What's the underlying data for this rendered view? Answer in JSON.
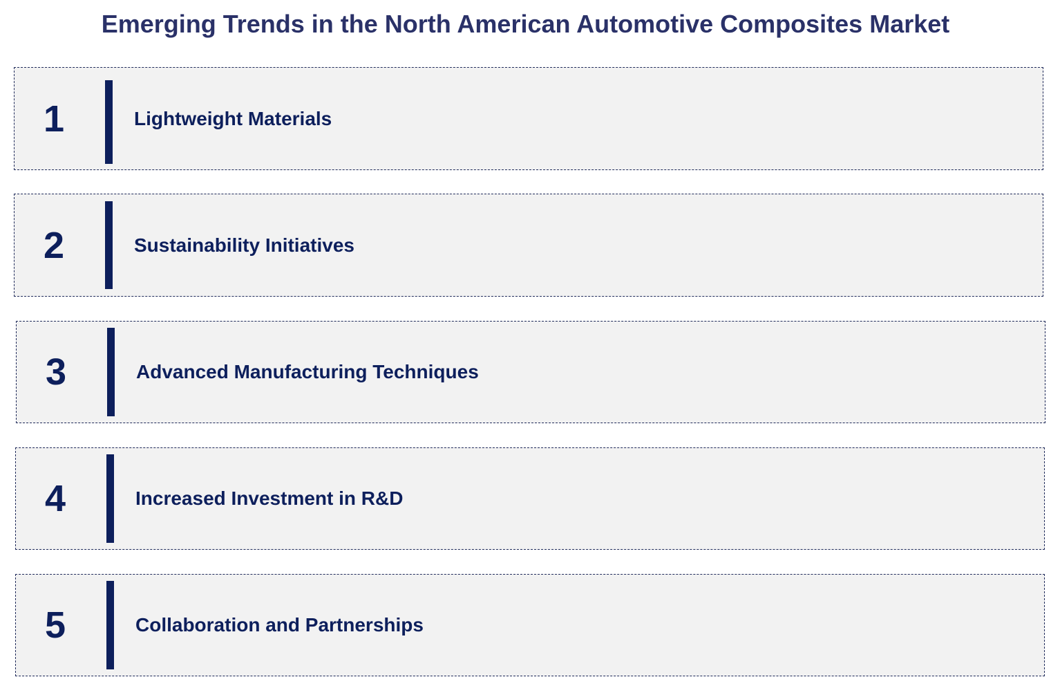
{
  "title": "Emerging Trends in the North American Automotive Composites Market",
  "items": [
    {
      "number": 1,
      "label": "Lightweight Materials"
    },
    {
      "number": 2,
      "label": "Sustainability Initiatives"
    },
    {
      "number": 3,
      "label": "Advanced Manufacturing Techniques"
    },
    {
      "number": 4,
      "label": "Increased Investment in R&D"
    },
    {
      "number": 5,
      "label": "Collaboration and Partnerships"
    }
  ]
}
